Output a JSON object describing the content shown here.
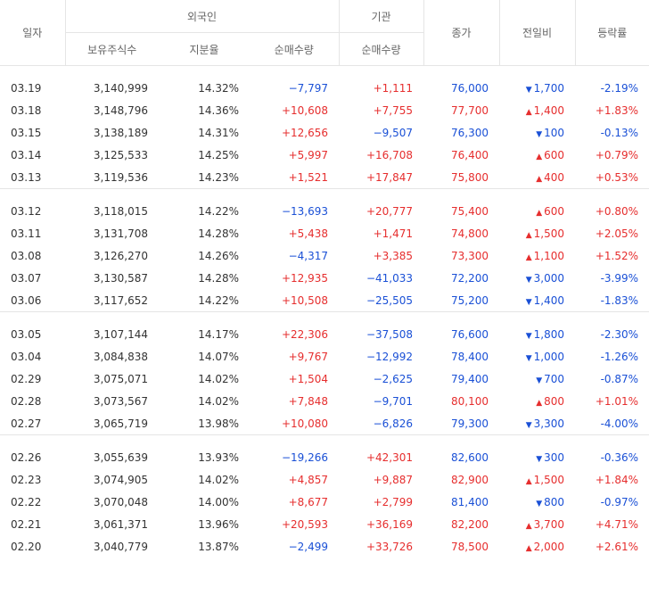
{
  "header": {
    "date": "일자",
    "foreign": "외국인",
    "institution": "기관",
    "close": "종가",
    "change": "전일비",
    "rate": "등락률",
    "holdings": "보유주식수",
    "share": "지분율",
    "foreign_net": "순매수량",
    "inst_net": "순매수량"
  },
  "groups": [
    [
      {
        "date": "03.19",
        "holdings": "3,140,999",
        "share": "14.32%",
        "foreign_net": "−7,797",
        "fdir": "down",
        "inst_net": "+1,111",
        "idir": "up",
        "close": "76,000",
        "cdir": "down",
        "change": "1,700",
        "chdir": "down",
        "rate": "-2.19%",
        "rdir": "down"
      },
      {
        "date": "03.18",
        "holdings": "3,148,796",
        "share": "14.36%",
        "foreign_net": "+10,608",
        "fdir": "up",
        "inst_net": "+7,755",
        "idir": "up",
        "close": "77,700",
        "cdir": "up",
        "change": "1,400",
        "chdir": "up",
        "rate": "+1.83%",
        "rdir": "up"
      },
      {
        "date": "03.15",
        "holdings": "3,138,189",
        "share": "14.31%",
        "foreign_net": "+12,656",
        "fdir": "up",
        "inst_net": "−9,507",
        "idir": "down",
        "close": "76,300",
        "cdir": "down",
        "change": "100",
        "chdir": "down",
        "rate": "-0.13%",
        "rdir": "down"
      },
      {
        "date": "03.14",
        "holdings": "3,125,533",
        "share": "14.25%",
        "foreign_net": "+5,997",
        "fdir": "up",
        "inst_net": "+16,708",
        "idir": "up",
        "close": "76,400",
        "cdir": "up",
        "change": "600",
        "chdir": "up",
        "rate": "+0.79%",
        "rdir": "up"
      },
      {
        "date": "03.13",
        "holdings": "3,119,536",
        "share": "14.23%",
        "foreign_net": "+1,521",
        "fdir": "up",
        "inst_net": "+17,847",
        "idir": "up",
        "close": "75,800",
        "cdir": "up",
        "change": "400",
        "chdir": "up",
        "rate": "+0.53%",
        "rdir": "up"
      }
    ],
    [
      {
        "date": "03.12",
        "holdings": "3,118,015",
        "share": "14.22%",
        "foreign_net": "−13,693",
        "fdir": "down",
        "inst_net": "+20,777",
        "idir": "up",
        "close": "75,400",
        "cdir": "up",
        "change": "600",
        "chdir": "up",
        "rate": "+0.80%",
        "rdir": "up"
      },
      {
        "date": "03.11",
        "holdings": "3,131,708",
        "share": "14.28%",
        "foreign_net": "+5,438",
        "fdir": "up",
        "inst_net": "+1,471",
        "idir": "up",
        "close": "74,800",
        "cdir": "up",
        "change": "1,500",
        "chdir": "up",
        "rate": "+2.05%",
        "rdir": "up"
      },
      {
        "date": "03.08",
        "holdings": "3,126,270",
        "share": "14.26%",
        "foreign_net": "−4,317",
        "fdir": "down",
        "inst_net": "+3,385",
        "idir": "up",
        "close": "73,300",
        "cdir": "up",
        "change": "1,100",
        "chdir": "up",
        "rate": "+1.52%",
        "rdir": "up"
      },
      {
        "date": "03.07",
        "holdings": "3,130,587",
        "share": "14.28%",
        "foreign_net": "+12,935",
        "fdir": "up",
        "inst_net": "−41,033",
        "idir": "down",
        "close": "72,200",
        "cdir": "down",
        "change": "3,000",
        "chdir": "down",
        "rate": "-3.99%",
        "rdir": "down"
      },
      {
        "date": "03.06",
        "holdings": "3,117,652",
        "share": "14.22%",
        "foreign_net": "+10,508",
        "fdir": "up",
        "inst_net": "−25,505",
        "idir": "down",
        "close": "75,200",
        "cdir": "down",
        "change": "1,400",
        "chdir": "down",
        "rate": "-1.83%",
        "rdir": "down"
      }
    ],
    [
      {
        "date": "03.05",
        "holdings": "3,107,144",
        "share": "14.17%",
        "foreign_net": "+22,306",
        "fdir": "up",
        "inst_net": "−37,508",
        "idir": "down",
        "close": "76,600",
        "cdir": "down",
        "change": "1,800",
        "chdir": "down",
        "rate": "-2.30%",
        "rdir": "down"
      },
      {
        "date": "03.04",
        "holdings": "3,084,838",
        "share": "14.07%",
        "foreign_net": "+9,767",
        "fdir": "up",
        "inst_net": "−12,992",
        "idir": "down",
        "close": "78,400",
        "cdir": "down",
        "change": "1,000",
        "chdir": "down",
        "rate": "-1.26%",
        "rdir": "down"
      },
      {
        "date": "02.29",
        "holdings": "3,075,071",
        "share": "14.02%",
        "foreign_net": "+1,504",
        "fdir": "up",
        "inst_net": "−2,625",
        "idir": "down",
        "close": "79,400",
        "cdir": "down",
        "change": "700",
        "chdir": "down",
        "rate": "-0.87%",
        "rdir": "down"
      },
      {
        "date": "02.28",
        "holdings": "3,073,567",
        "share": "14.02%",
        "foreign_net": "+7,848",
        "fdir": "up",
        "inst_net": "−9,701",
        "idir": "down",
        "close": "80,100",
        "cdir": "up",
        "change": "800",
        "chdir": "up",
        "rate": "+1.01%",
        "rdir": "up"
      },
      {
        "date": "02.27",
        "holdings": "3,065,719",
        "share": "13.98%",
        "foreign_net": "+10,080",
        "fdir": "up",
        "inst_net": "−6,826",
        "idir": "down",
        "close": "79,300",
        "cdir": "down",
        "change": "3,300",
        "chdir": "down",
        "rate": "-4.00%",
        "rdir": "down"
      }
    ],
    [
      {
        "date": "02.26",
        "holdings": "3,055,639",
        "share": "13.93%",
        "foreign_net": "−19,266",
        "fdir": "down",
        "inst_net": "+42,301",
        "idir": "up",
        "close": "82,600",
        "cdir": "down",
        "change": "300",
        "chdir": "down",
        "rate": "-0.36%",
        "rdir": "down"
      },
      {
        "date": "02.23",
        "holdings": "3,074,905",
        "share": "14.02%",
        "foreign_net": "+4,857",
        "fdir": "up",
        "inst_net": "+9,887",
        "idir": "up",
        "close": "82,900",
        "cdir": "up",
        "change": "1,500",
        "chdir": "up",
        "rate": "+1.84%",
        "rdir": "up"
      },
      {
        "date": "02.22",
        "holdings": "3,070,048",
        "share": "14.00%",
        "foreign_net": "+8,677",
        "fdir": "up",
        "inst_net": "+2,799",
        "idir": "up",
        "close": "81,400",
        "cdir": "down",
        "change": "800",
        "chdir": "down",
        "rate": "-0.97%",
        "rdir": "down"
      },
      {
        "date": "02.21",
        "holdings": "3,061,371",
        "share": "13.96%",
        "foreign_net": "+20,593",
        "fdir": "up",
        "inst_net": "+36,169",
        "idir": "up",
        "close": "82,200",
        "cdir": "up",
        "change": "3,700",
        "chdir": "up",
        "rate": "+4.71%",
        "rdir": "up"
      },
      {
        "date": "02.20",
        "holdings": "3,040,779",
        "share": "13.87%",
        "foreign_net": "−2,499",
        "fdir": "down",
        "inst_net": "+33,726",
        "idir": "up",
        "close": "78,500",
        "cdir": "up",
        "change": "2,000",
        "chdir": "up",
        "rate": "+2.61%",
        "rdir": "up"
      }
    ]
  ]
}
